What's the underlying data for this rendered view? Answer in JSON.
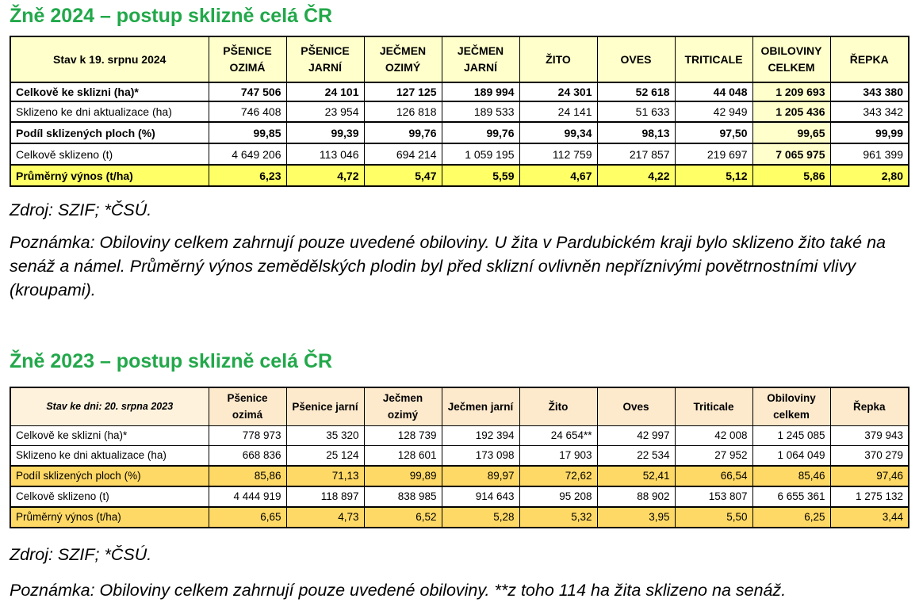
{
  "sections": [
    {
      "title": "Žně 2024 – postup sklizně celá ČR",
      "header": [
        "Stav k 19. srpnu 2024",
        "PŠENICE OZIMÁ",
        "PŠENICE JARNÍ",
        "JEČMEN OZIMÝ",
        "JEČMEN JARNÍ",
        "ŽITO",
        "OVES",
        "TRITICALE",
        "OBILOVINY CELKEM",
        "ŘEPKA"
      ],
      "rows": [
        [
          "Celkově ke sklizni (ha)*",
          "747 506",
          "24 101",
          "127 125",
          "189 994",
          "24 301",
          "52 618",
          "44 048",
          "1 209 693",
          "343 380"
        ],
        [
          "Sklizeno ke dni aktualizace (ha)",
          "746 408",
          "23 954",
          "126 818",
          "189 533",
          "24 141",
          "51 633",
          "42 949",
          "1 205 436",
          "343 342"
        ],
        [
          "Podíl sklizených ploch (%)",
          "99,85",
          "99,39",
          "99,76",
          "99,76",
          "99,34",
          "98,13",
          "97,50",
          "99,65",
          "99,99"
        ],
        [
          "Celkově sklizeno (t)",
          "4 649 206",
          "113 046",
          "694 214",
          "1 059 195",
          "112 759",
          "217 857",
          "219 697",
          "7 065 975",
          "961 399"
        ],
        [
          "Průměrný výnos (t/ha)",
          "6,23",
          "4,72",
          "5,47",
          "5,59",
          "4,67",
          "4,22",
          "5,12",
          "5,86",
          "2,80"
        ]
      ],
      "source": "Zdroj: SZIF; *ČSÚ.",
      "note": "Poznámka: Obiloviny celkem zahrnují pouze uvedené obiloviny. U žita v Pardubickém kraji bylo sklizeno žito také na senáž a námel. Průměrný výnos zemědělských plodin byl před sklizní ovlivněn nepříznivými povětrnostními vlivy (kroupami)."
    },
    {
      "title": "Žně 2023 – postup sklizně celá ČR",
      "header": [
        "Stav ke dni: 20. srpna 2023",
        "Pšenice ozimá",
        "Pšenice jarní",
        "Ječmen ozimý",
        "Ječmen jarní",
        "Žito",
        "Oves",
        "Triticale",
        "Obiloviny celkem",
        "Řepka"
      ],
      "rows": [
        [
          "Celkově ke sklizni (ha)*",
          "778 973",
          "35 320",
          "128 739",
          "192 394",
          "24 654**",
          "42 997",
          "42 008",
          "1 245 085",
          "379 943"
        ],
        [
          "Sklizeno ke dni aktualizace (ha)",
          "668 836",
          "25 124",
          "128 601",
          "173 098",
          "17 903",
          "22 534",
          "27 952",
          "1 064 049",
          "370 279"
        ],
        [
          "Podíl sklizených ploch (%)",
          "85,86",
          "71,13",
          "99,89",
          "89,97",
          "72,62",
          "52,41",
          "66,54",
          "85,46",
          "97,46"
        ],
        [
          "Celkově sklizeno (t)",
          "4 444 919",
          "118 897",
          "838 985",
          "914 643",
          "95 208",
          "88 902",
          "153 807",
          "6 655 361",
          "1 275 132"
        ],
        [
          "Průměrný výnos (t/ha)",
          "6,65",
          "4,73",
          "6,52",
          "5,28",
          "5,32",
          "3,95",
          "5,50",
          "6,25",
          "3,44"
        ]
      ],
      "source": "Zdroj: SZIF; *ČSÚ.",
      "note": "Poznámka: Obiloviny celkem zahrnují pouze uvedené obiloviny. **z toho 114 ha žita sklizeno na senáž."
    }
  ]
}
